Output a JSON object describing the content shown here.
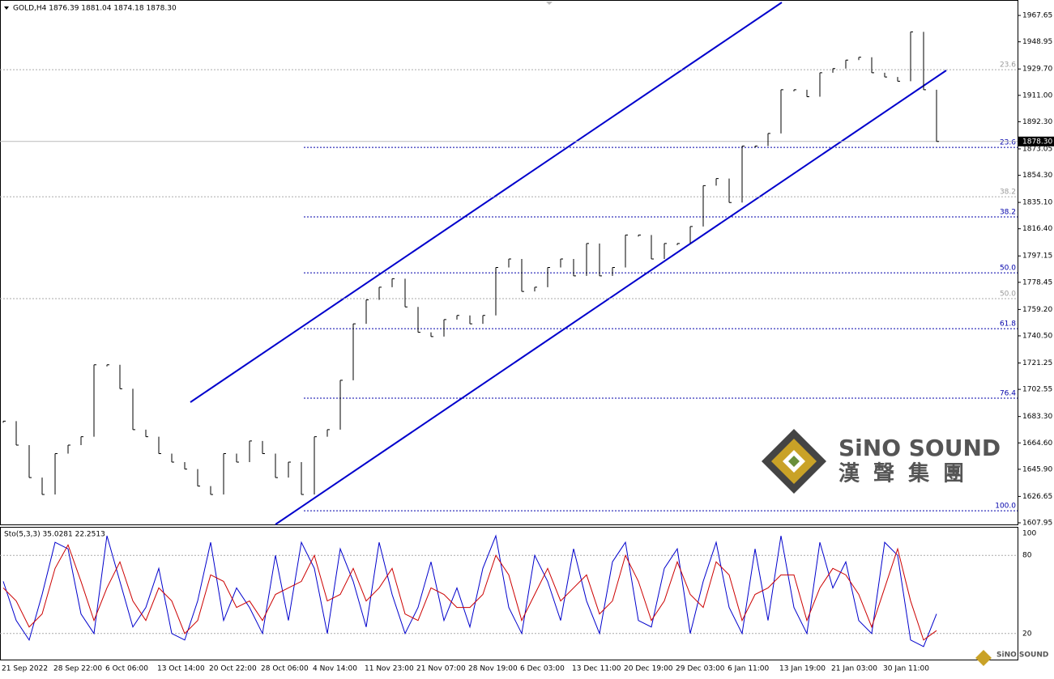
{
  "window": {
    "header": "GOLD,H4  1876.39 1881.04 1874.18 1878.30"
  },
  "chart_data": [
    {
      "type": "price",
      "color": "#000000",
      "values": [
        1680,
        1663,
        1640,
        1628,
        1657,
        1663,
        1669,
        1720,
        1720,
        1703,
        1674,
        1669,
        1657,
        1651,
        1646,
        1634,
        1628,
        1657,
        1651,
        1666,
        1657,
        1640,
        1651,
        1628,
        1669,
        1674,
        1709,
        1749,
        1766,
        1775,
        1781,
        1761,
        1743,
        1740,
        1752,
        1755,
        1749,
        1755,
        1789,
        1795,
        1772,
        1775,
        1789,
        1795,
        1783,
        1806,
        1783,
        1789,
        1812,
        1812,
        1795,
        1806,
        1806,
        1818,
        1847,
        1852,
        1835,
        1875,
        1875,
        1884,
        1915,
        1915,
        1910,
        1927,
        1930,
        1936,
        1938,
        1927,
        1924,
        1921,
        1956,
        1915,
        1878.3
      ],
      "ylim": [
        1606.8,
        1978.6
      ],
      "yticks": [
        1967.65,
        1948.95,
        {
          "value": 1929.7,
          "label": "1929.70"
        },
        {
          "value": 1911,
          "label": "1911.00"
        },
        {
          "value": 1892.3,
          "label": "1892.30"
        },
        1873.05,
        {
          "value": 1854.3,
          "label": "1854.30"
        },
        {
          "value": 1835.1,
          "label": "1835.10"
        },
        {
          "value": 1816.4,
          "label": "1816.40"
        },
        1797.15,
        1778.45,
        {
          "value": 1759.2,
          "label": "1759.20"
        },
        {
          "value": 1740.5,
          "label": "1740.50"
        },
        1721.25,
        1702.55,
        {
          "value": 1683.3,
          "label": "1683.30"
        },
        {
          "value": 1664.6,
          "label": "1664.60"
        },
        {
          "value": 1645.9,
          "label": "1645.90"
        },
        1626.65,
        1607.95
      ],
      "last_price": {
        "value": 1878.3,
        "label": "1878.30"
      },
      "x_labels": [
        "21 Sep 2022",
        "28 Sep 22:00",
        "6 Oct 06:00",
        "13 Oct 14:00",
        "20 Oct 22:00",
        "28 Oct 06:00",
        "4 Nov 14:00",
        "11 Nov 23:00",
        "21 Nov 07:00",
        "28 Nov 19:00",
        "6 Dec 03:00",
        "13 Dec 11:00",
        "20 Dec 19:00",
        "29 Dec 03:00",
        "6 Jan 11:00",
        "13 Jan 19:00",
        "21 Jan 03:00",
        "30 Jan 11:00"
      ],
      "fib_blue": [
        {
          "label": "23.6",
          "price": 1874.1
        },
        {
          "label": "38.2",
          "price": 1824.8
        },
        {
          "label": "50.0",
          "price": 1785.2
        },
        {
          "label": "61.8",
          "price": 1745.6
        },
        {
          "label": "76.4",
          "price": 1696.3
        },
        {
          "label": "100.0",
          "price": 1616.5
        }
      ],
      "fib_gray": [
        {
          "label": "23.6",
          "price": 1929.2
        },
        {
          "label": "38.2",
          "price": 1839.1
        },
        {
          "label": "50.0",
          "price": 1766.9
        }
      ]
    },
    {
      "type": "line",
      "title": "Sto(5,3,3) 35.0281 22.2513",
      "ylim": [
        0,
        100
      ],
      "yticks": [
        100,
        80,
        20
      ],
      "series": [
        {
          "color": "#0000cc",
          "values": [
            60,
            30,
            15,
            50,
            90,
            85,
            35,
            20,
            95,
            60,
            25,
            40,
            70,
            20,
            15,
            45,
            90,
            30,
            55,
            40,
            20,
            80,
            30,
            90,
            70,
            20,
            85,
            60,
            25,
            90,
            50,
            20,
            40,
            75,
            30,
            55,
            25,
            70,
            95,
            40,
            20,
            80,
            60,
            30,
            85,
            45,
            20,
            75,
            90,
            30,
            25,
            70,
            85,
            20,
            60,
            90,
            40,
            20,
            85,
            30,
            95,
            40,
            20,
            90,
            55,
            75,
            30,
            20,
            90,
            80,
            15,
            10,
            35.0281
          ]
        },
        {
          "color": "#cc0000",
          "values": [
            55,
            45,
            25,
            35,
            70,
            88,
            60,
            30,
            55,
            75,
            45,
            30,
            55,
            45,
            20,
            30,
            65,
            60,
            40,
            45,
            30,
            50,
            55,
            60,
            80,
            45,
            50,
            70,
            45,
            55,
            70,
            35,
            30,
            55,
            50,
            40,
            40,
            50,
            80,
            65,
            30,
            50,
            70,
            45,
            55,
            65,
            35,
            45,
            80,
            60,
            30,
            45,
            75,
            50,
            40,
            75,
            65,
            30,
            50,
            55,
            65,
            65,
            30,
            55,
            70,
            65,
            50,
            25,
            55,
            85,
            45,
            15,
            22.2513
          ]
        }
      ]
    }
  ],
  "logo": {
    "name": "SiNO SOUND",
    "chinese": "漢 聲 集 團"
  },
  "watermark": "SiNO SOUND"
}
